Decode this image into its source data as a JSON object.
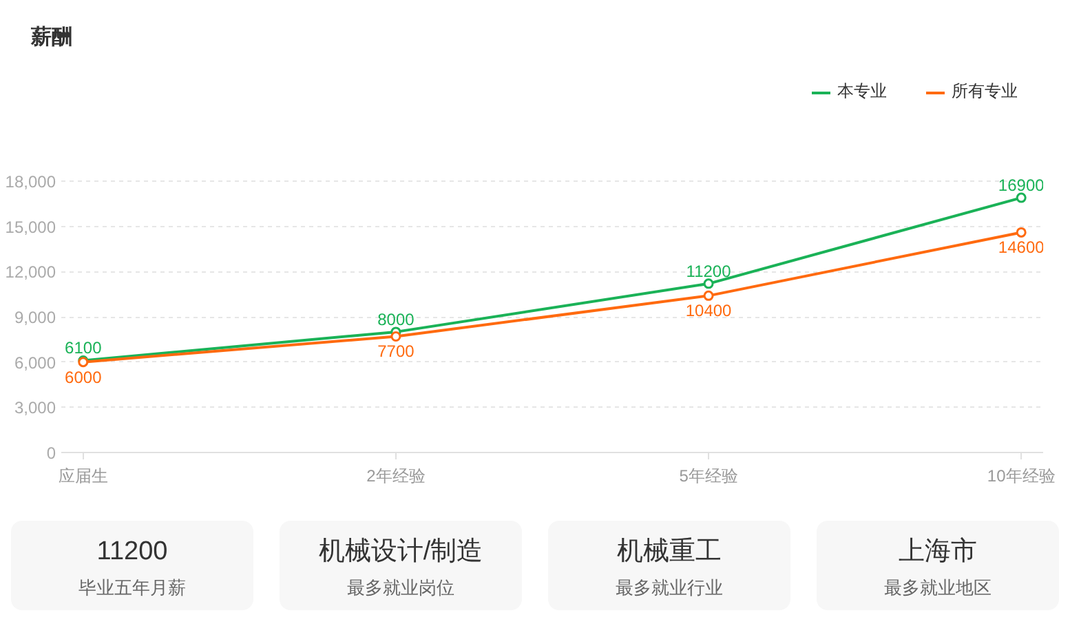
{
  "chart_data": [
    {
      "type": "line",
      "title": "薪酬",
      "categories": [
        "应届生",
        "2年经验",
        "5年经验",
        "10年经验"
      ],
      "series": [
        {
          "name": "本专业",
          "color": "#1ab257",
          "values": [
            6100,
            8000,
            11200,
            16900
          ]
        },
        {
          "name": "所有专业",
          "color": "#ff6a0f",
          "values": [
            6000,
            7700,
            10400,
            14600
          ]
        }
      ],
      "ylim": [
        0,
        18000
      ],
      "yticks": [
        0,
        {
          "value": 3000,
          "label": "3,000"
        },
        {
          "value": 6000,
          "label": "6,000"
        },
        {
          "value": 9000,
          "label": "9,000"
        },
        {
          "value": 12000,
          "label": "12,000"
        },
        {
          "value": 15000,
          "label": "15,000"
        },
        {
          "value": 18000,
          "label": "18,000"
        }
      ],
      "grid": "y",
      "legend": "top right",
      "marker": "circle",
      "line_style": "solid",
      "data_labels": true
    },
    {
      "type": "other",
      "annotations": [
        "11200",
        "毕业五年月薪",
        "机械设计/制造",
        "最多就业岗位",
        "机械重工",
        "最多就业行业",
        "上海市",
        "最多就业地区"
      ]
    }
  ]
}
